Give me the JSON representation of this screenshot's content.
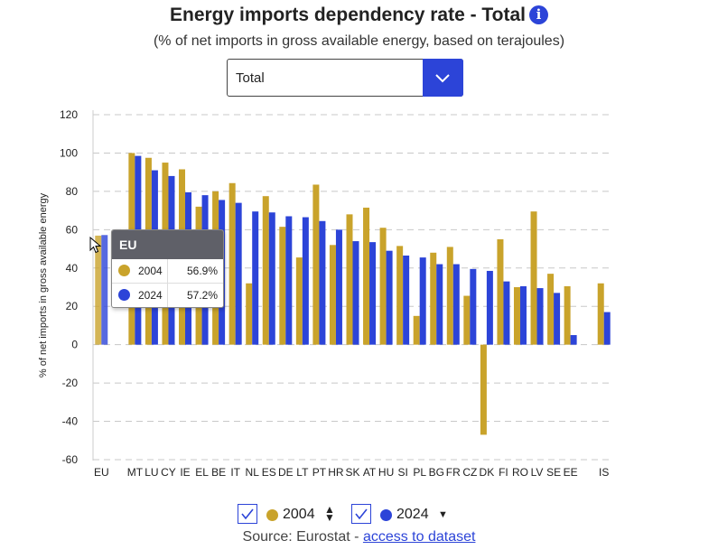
{
  "header": {
    "title": "Energy imports dependency rate - Total",
    "info_glyph": "i",
    "subtitle": "(% of net imports in gross available energy, based on terajoules)"
  },
  "filter": {
    "selected": "Total"
  },
  "chart_data": {
    "type": "bar",
    "title": "Energy imports dependency rate - Total",
    "subtitle": "(% of net imports in gross available energy, based on terajoules)",
    "ylabel": "% of net imports in gross available energy",
    "xlabel": "",
    "ylim": [
      -60,
      120
    ],
    "yticks": [
      120,
      100,
      80,
      60,
      40,
      20,
      0,
      -20,
      -40,
      -60
    ],
    "grid": true,
    "categories": [
      "EU",
      "",
      "MT",
      "LU",
      "CY",
      "IE",
      "EL",
      "BE",
      "IT",
      "NL",
      "ES",
      "DE",
      "LT",
      "PT",
      "HR",
      "SK",
      "AT",
      "HU",
      "SI",
      "PL",
      "BG",
      "FR",
      "CZ",
      "DK",
      "FI",
      "RO",
      "LV",
      "SE",
      "EE",
      "",
      "IS"
    ],
    "series": [
      {
        "name": "2004",
        "color": "#c9a32b",
        "values": [
          56.9,
          null,
          100,
          97.5,
          95,
          91.5,
          72,
          80,
          84.3,
          32,
          77.5,
          61.5,
          45.5,
          83.5,
          52,
          68,
          71.5,
          61,
          51.5,
          15,
          48,
          51,
          25.5,
          -47,
          55,
          30,
          69.5,
          37,
          30.5,
          null,
          32
        ]
      },
      {
        "name": "2024",
        "color": "#2c44d8",
        "values": [
          57.2,
          null,
          98.5,
          91,
          88,
          79.5,
          78,
          75.5,
          74,
          69.5,
          69,
          67,
          66.5,
          64.5,
          60,
          54,
          53.5,
          49,
          46.5,
          45.5,
          42,
          42,
          39.5,
          38.5,
          33,
          30.5,
          29.5,
          27,
          5,
          null,
          17
        ]
      }
    ]
  },
  "legend": {
    "items": [
      {
        "label": "2004",
        "color": "#c9a32b"
      },
      {
        "label": "2024",
        "color": "#2c44d8"
      }
    ],
    "sort_icon": "⬍",
    "caret_icon": "▼"
  },
  "tooltip": {
    "title": "EU",
    "rows": [
      {
        "year": "2004",
        "value": "56.9%",
        "color": "#c9a32b"
      },
      {
        "year": "2024",
        "value": "57.2%",
        "color": "#2c44d8"
      }
    ]
  },
  "source": {
    "prefix": "Source: Eurostat - ",
    "link_text": "access to dataset"
  }
}
